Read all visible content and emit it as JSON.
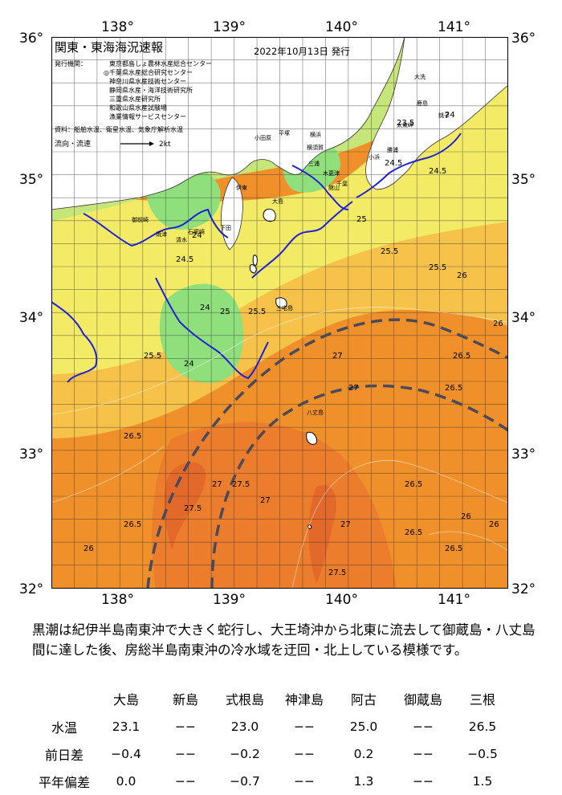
{
  "map": {
    "title": "関東・東海海況速報",
    "date": "2022年10月13日 発行",
    "publisher_label": "発行機関：",
    "publishers": [
      "東京都島しょ農林水産総合センター",
      "◎千葉県水産総合研究センター",
      "神奈川県水産技術センター",
      "静岡県水産・海洋技術研究所",
      "三重県水産研究所",
      "和歌山県水産試験場",
      "漁業情報サービスセンター"
    ],
    "source": "資料：船舶水温、衛星水温、気象庁解析水温",
    "current_legend": "流向・流速",
    "current_speed": "2kt",
    "lon_labels": [
      "138°",
      "139°",
      "140°",
      "141°"
    ],
    "lat_labels": [
      "36°",
      "35°",
      "34°",
      "33°",
      "32°"
    ],
    "place_names": [
      "大洗",
      "鹿島",
      "銚子",
      "太東岬",
      "勝浦",
      "館山",
      "千葉",
      "木更津",
      "横浜",
      "横須賀",
      "三浦",
      "平塚",
      "小田原",
      "伊東",
      "下田",
      "石廊崎",
      "御前崎",
      "焼津",
      "清水",
      "大島",
      "三宅島",
      "八丈島",
      "小浜"
    ],
    "isotherm_labels": [
      "23.5",
      "24",
      "24.5",
      "24.5",
      "25",
      "25.5",
      "25.5",
      "26",
      "26",
      "26.5",
      "26.5",
      "27",
      "27",
      "27.5",
      "27.5",
      "26",
      "26.5",
      "26.5",
      "24",
      "24",
      "24",
      "24.5",
      "25",
      "25.5",
      "25.5",
      "26.5",
      "27",
      "27",
      "27",
      "27.5",
      "26.5",
      "26",
      "26.5",
      "26"
    ]
  },
  "caption": "黒潮は紀伊半島南東沖で大きく蛇行し、大王埼沖から北東に流去して御蔵島・八丈島間に達した後、房総半島南東沖の冷水域を迂回・北上している模様です。",
  "stats": {
    "columns": [
      "大島",
      "新島",
      "式根島",
      "神津島",
      "阿古",
      "御蔵島",
      "三根"
    ],
    "rows": [
      {
        "label": "水温",
        "values": [
          "23.1",
          "−−",
          "23.0",
          "−−",
          "25.0",
          "−−",
          "26.5"
        ]
      },
      {
        "label": "前日差",
        "values": [
          "−0.4",
          "−−",
          "−0.2",
          "−−",
          "0.2",
          "−−",
          "−0.5"
        ]
      },
      {
        "label": "平年偏差",
        "values": [
          "0.0",
          "−−",
          "−0.7",
          "−−",
          "1.3",
          "−−",
          "1.5"
        ]
      }
    ]
  },
  "colors": {
    "ocean_warm": "#f0902a",
    "ocean_hot": "#e8722a",
    "ocean_mid": "#f6c24a",
    "ocean_cool": "#f3ea66",
    "ocean_cooler": "#c6e67a",
    "ocean_cold": "#8fe07c",
    "kuroshio_line": "#4a4a58",
    "front_line": "#1f23d4"
  }
}
